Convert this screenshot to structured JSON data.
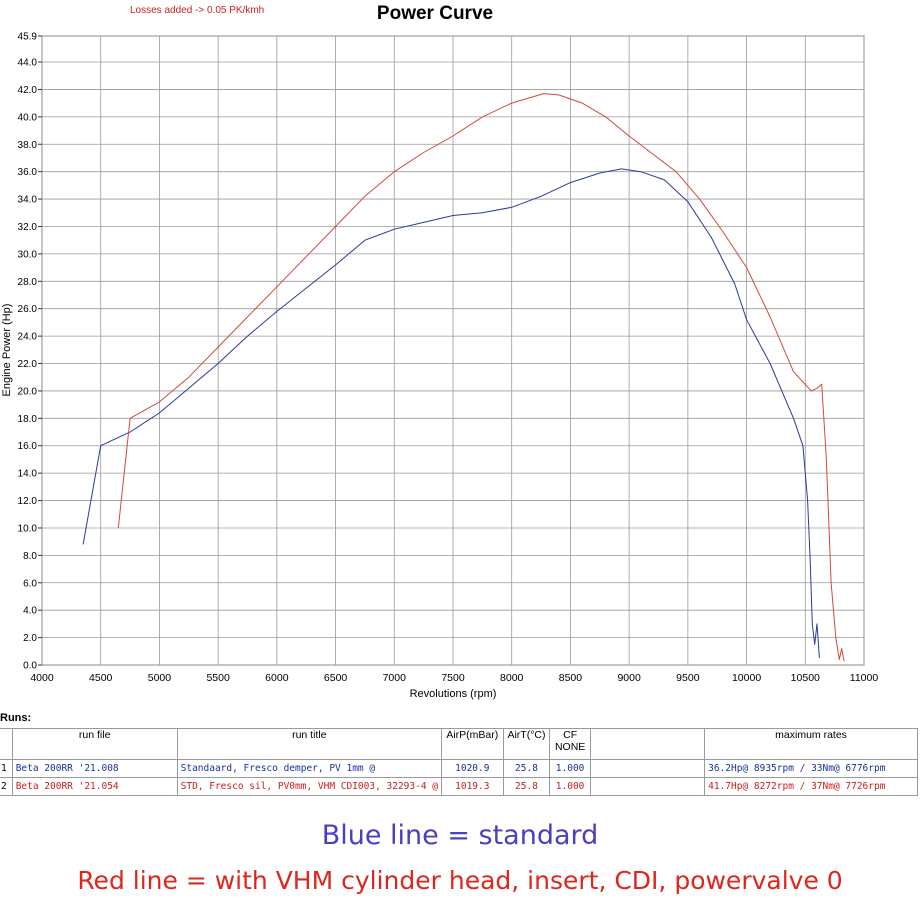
{
  "header": {
    "note": "Losses added -> 0.05 PK/kmh",
    "title": "Power Curve"
  },
  "chart_data": {
    "type": "line",
    "title": "Power Curve",
    "xlabel": "Revolutions (rpm)",
    "ylabel": "Engine Power (Hp)",
    "xlim": [
      4000,
      11000
    ],
    "ylim": [
      0,
      45.9
    ],
    "x_ticks": [
      "4000",
      "4500",
      "5000",
      "5500",
      "6000",
      "6500",
      "7000",
      "7500",
      "8000",
      "8500",
      "9000",
      "9500",
      "10000",
      "10500",
      "11000"
    ],
    "y_ticks": [
      "0.0",
      "2.0",
      "4.0",
      "6.0",
      "8.0",
      "10.0",
      "12.0",
      "14.0",
      "16.0",
      "18.0",
      "20.0",
      "22.0",
      "24.0",
      "26.0",
      "28.0",
      "30.0",
      "32.0",
      "34.0",
      "36.0",
      "38.0",
      "40.0",
      "42.0",
      "44.0",
      "45.9"
    ],
    "grid": true,
    "series": [
      {
        "color": "#2b3a9e",
        "x": [
          4350,
          4500,
          4750,
          5000,
          5250,
          5500,
          5750,
          6000,
          6250,
          6500,
          6750,
          7000,
          7250,
          7500,
          7750,
          8000,
          8250,
          8500,
          8750,
          8935,
          9100,
          9300,
          9500,
          9700,
          9900,
          10000,
          10200,
          10400,
          10480,
          10520,
          10540,
          10560,
          10580,
          10600,
          10620
        ],
        "y": [
          8.8,
          16.0,
          17.0,
          18.4,
          20.2,
          22.0,
          24.0,
          25.8,
          27.5,
          29.2,
          31.0,
          31.8,
          32.3,
          32.8,
          33.0,
          33.4,
          34.2,
          35.2,
          35.9,
          36.2,
          36.0,
          35.4,
          33.8,
          31.2,
          27.8,
          25.2,
          22.0,
          18.0,
          16.0,
          12.0,
          8.0,
          3.0,
          1.5,
          3.0,
          0.5
        ]
      },
      {
        "color": "#d24a3a",
        "x": [
          4650,
          4750,
          5000,
          5250,
          5500,
          5750,
          6000,
          6250,
          6500,
          6750,
          7000,
          7250,
          7500,
          7750,
          8000,
          8272,
          8400,
          8600,
          8800,
          9000,
          9200,
          9400,
          9600,
          9800,
          10000,
          10200,
          10400,
          10550,
          10600,
          10640,
          10680,
          10720,
          10760,
          10790,
          10810,
          10830
        ],
        "y": [
          10.0,
          18.0,
          19.2,
          21.0,
          23.2,
          25.4,
          27.6,
          29.8,
          32.0,
          34.2,
          36.0,
          37.4,
          38.6,
          40.0,
          41.0,
          41.7,
          41.6,
          41.0,
          40.0,
          38.6,
          37.3,
          36.0,
          34.0,
          31.6,
          29.0,
          25.4,
          21.4,
          20.0,
          20.2,
          20.5,
          15.0,
          6.0,
          2.0,
          0.4,
          1.2,
          0.3
        ]
      }
    ]
  },
  "runs": {
    "label": "Runs:",
    "headers": {
      "run_file": "run file",
      "run_title": "run title",
      "airp": "AirP(mBar)",
      "airt": "AirT(°C)",
      "cf": "CF",
      "cf_sub": "NONE",
      "max_rates": "maximum rates"
    },
    "rows": [
      {
        "index": "1",
        "run_file": "Beta 200RR '21.008",
        "run_title": "Standaard, Fresco demper, PV 1mm @",
        "airp": "1020.9",
        "airt": "25.8",
        "cf": "1.000",
        "max_rates": "36.2Hp@ 8935rpm / 33Nm@ 6776rpm"
      },
      {
        "index": "2",
        "run_file": "Beta 200RR '21.054",
        "run_title": "STD, Fresco sil, PV0mm, VHM CDI003, 32293-4  @",
        "airp": "1019.3",
        "airt": "25.8",
        "cf": "1.000",
        "max_rates": "41.7Hp@ 8272rpm / 37Nm@ 7726rpm"
      }
    ]
  },
  "captions": {
    "blue": "Blue line = standard",
    "red": "Red line = with VHM cylinder head, insert, CDI, powervalve 0"
  }
}
